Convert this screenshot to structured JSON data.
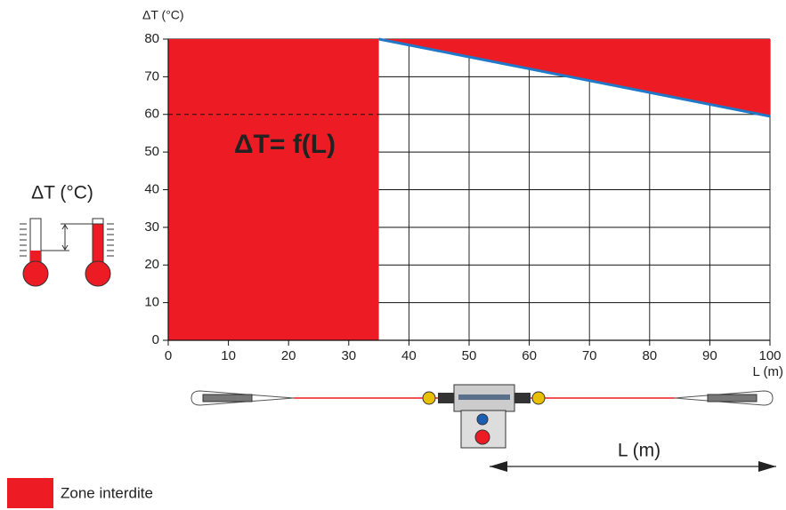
{
  "chart_data": {
    "type": "line",
    "y_label": "ΔT (°C)",
    "x_label": "L (m)",
    "annotation": "ΔT= f(L)",
    "xlim": [
      0,
      100
    ],
    "ylim": [
      0,
      80
    ],
    "xticks": [
      0,
      10,
      20,
      30,
      40,
      50,
      60,
      70,
      80,
      90,
      100
    ],
    "yticks": [
      0,
      10,
      20,
      30,
      40,
      50,
      60,
      70,
      80
    ],
    "grid": true,
    "series": [
      {
        "color": "#1f78c8",
        "x": [
          35,
          100
        ],
        "values": [
          80,
          59.5
        ]
      }
    ],
    "zone": {
      "name": "Zone interdite",
      "color": "#ed1c24",
      "x_max": 35
    },
    "dashed_y": 60,
    "illustration": {
      "delta_label": "ΔT (°C)",
      "length_label": "L (m)"
    }
  }
}
